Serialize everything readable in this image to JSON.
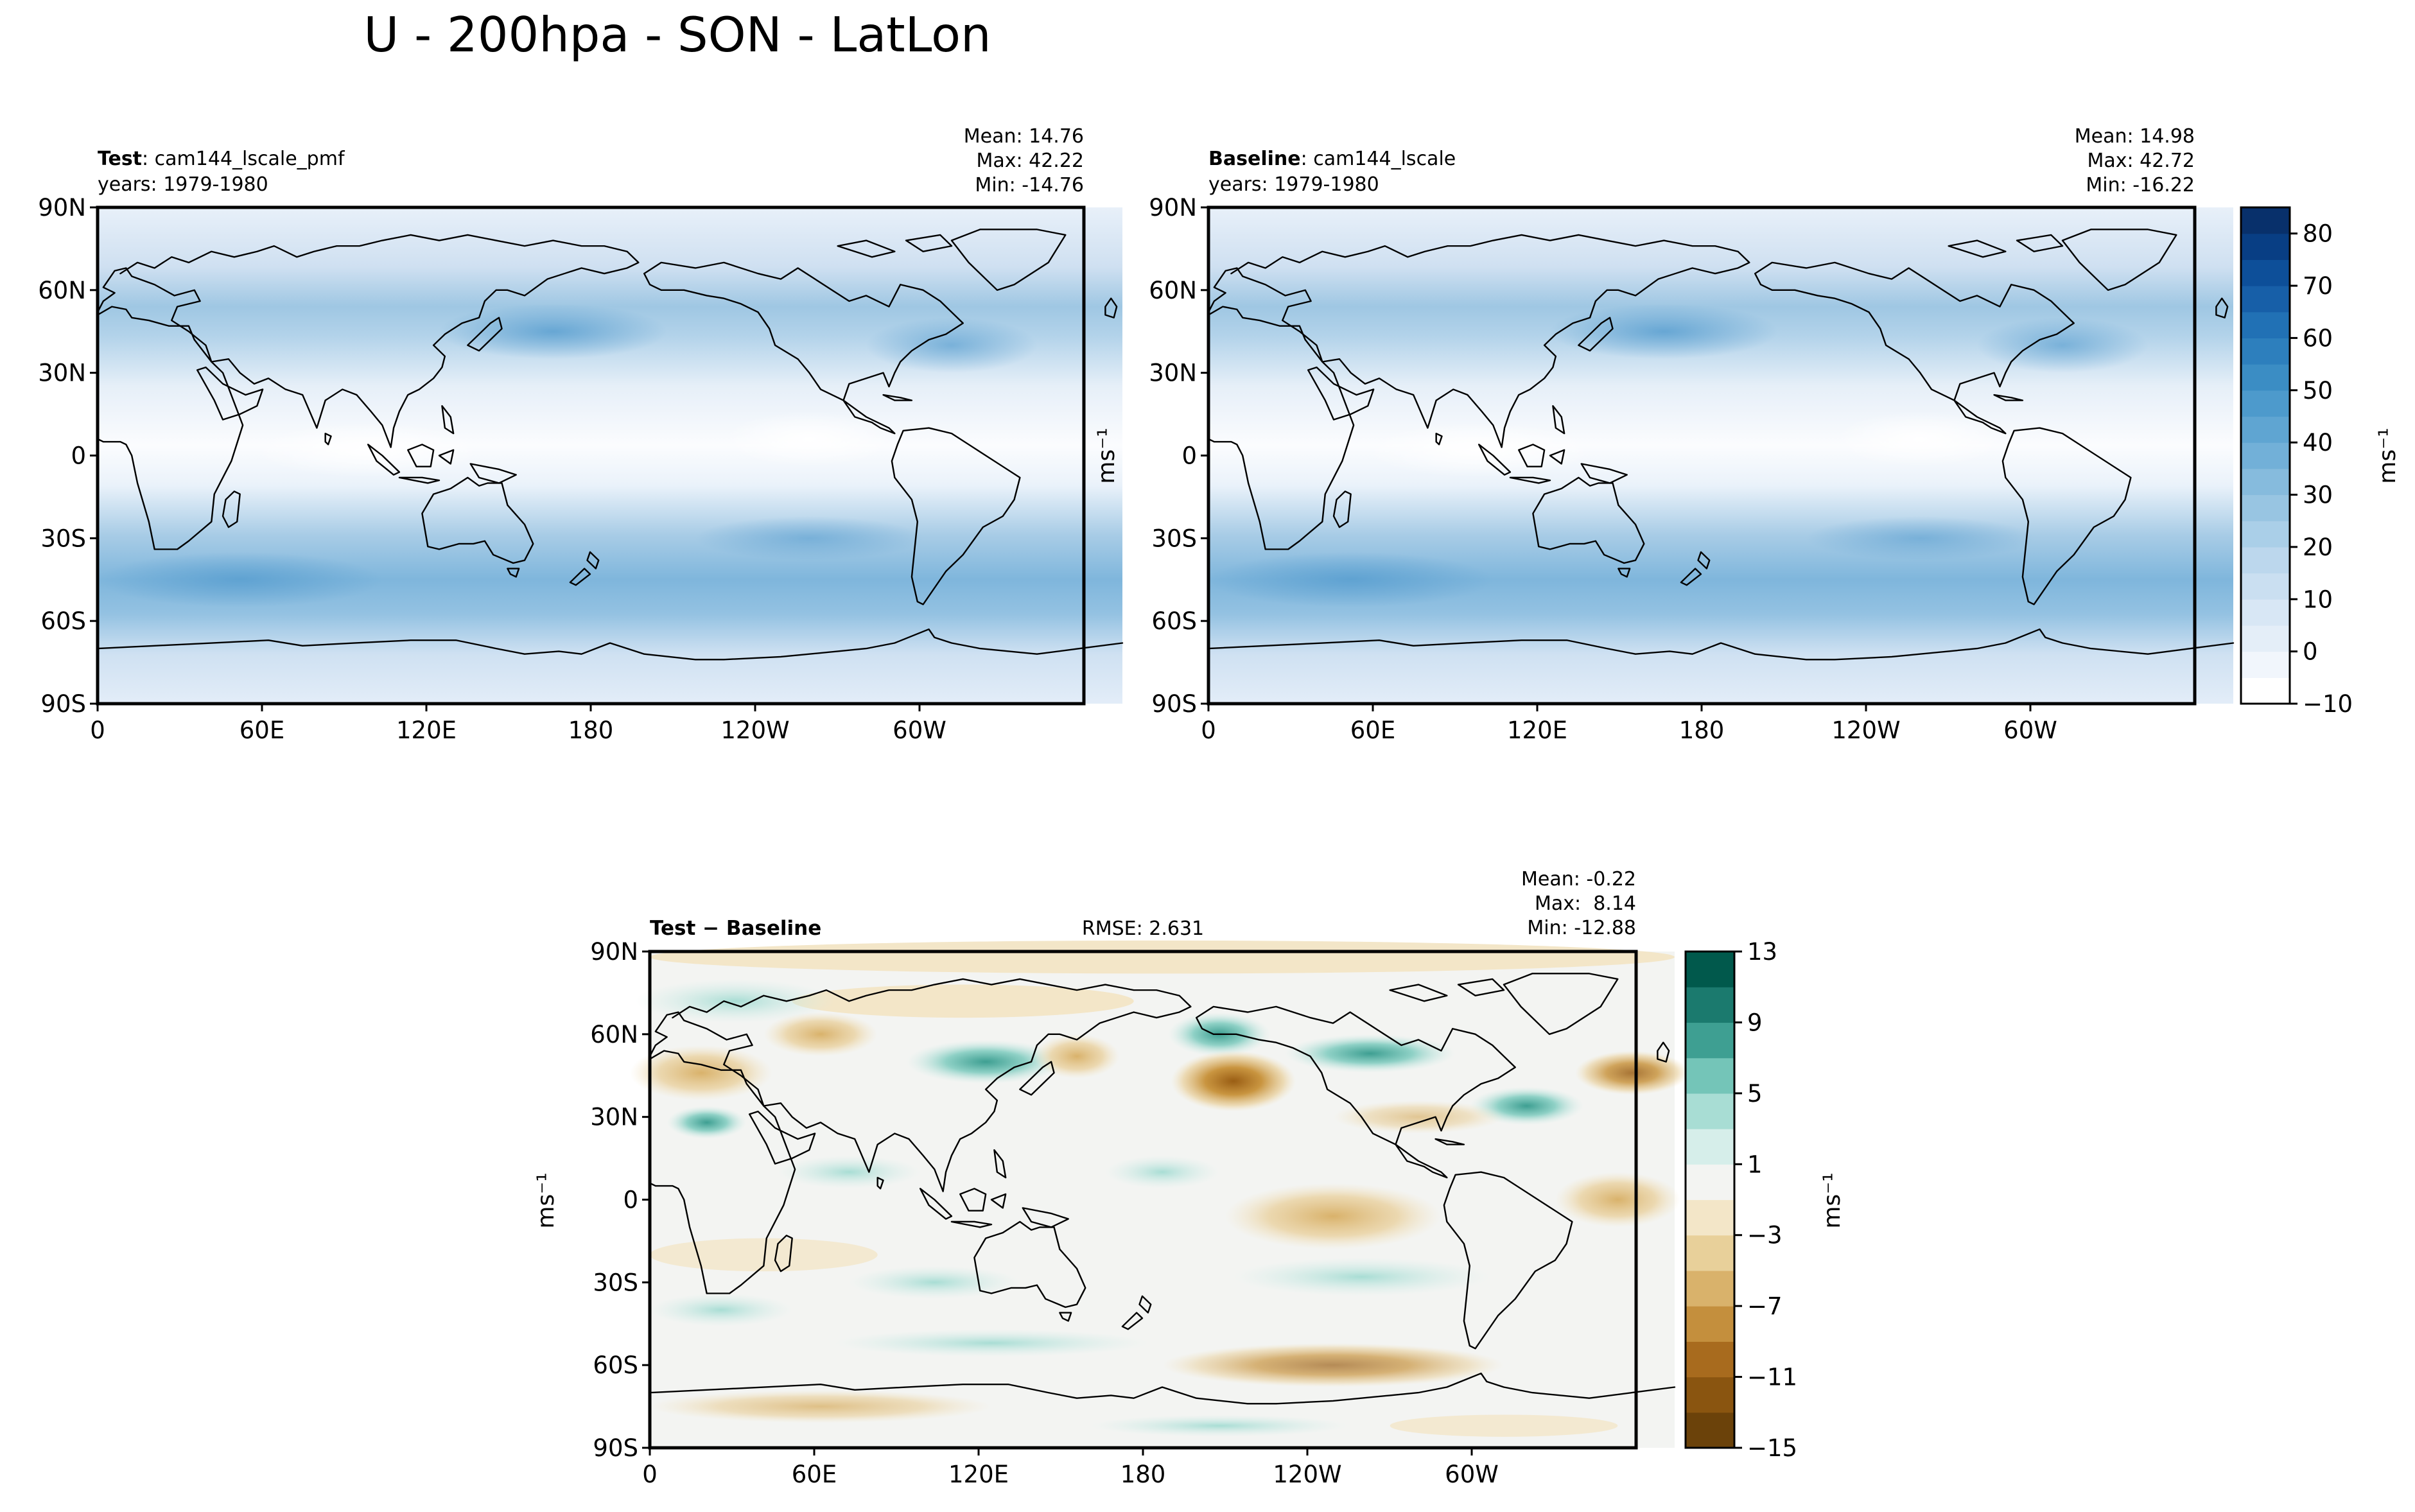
{
  "figure": {
    "title": "U - 200hpa - SON - LatLon"
  },
  "panels": {
    "test": {
      "label_bold": "Test",
      "label_rest": ": cam144_lscale_pmf",
      "years": "years: 1979-1980",
      "mean": "Mean: 14.76",
      "max": "Max: 42.22",
      "min": "Min: -14.76"
    },
    "baseline": {
      "label_bold": "Baseline",
      "label_rest": ": cam144_lscale",
      "years": "years: 1979-1980",
      "mean": "Mean: 14.98",
      "max": "Max: 42.72",
      "min": "Min: -16.22"
    },
    "diff": {
      "label": "Test − Baseline",
      "rmse": "RMSE: 2.631",
      "mean": "Mean: -0.22",
      "max": "Max:  8.14",
      "min": "Min: -12.88"
    }
  },
  "axes": {
    "lat_ticks": [
      "90N",
      "60N",
      "30N",
      "0",
      "30S",
      "60S",
      "90S"
    ],
    "lon_ticks": [
      "0",
      "60E",
      "120E",
      "180",
      "120W",
      "60W"
    ]
  },
  "colorbars": {
    "main": {
      "unit": "ms⁻¹",
      "ticks": [
        "80",
        "70",
        "60",
        "50",
        "40",
        "30",
        "20",
        "10",
        "0",
        "−10"
      ],
      "range": [
        -10,
        85
      ],
      "colors": [
        "#ffffff",
        "#f1f6fc",
        "#e4eef8",
        "#d8e7f5",
        "#cadff1",
        "#bcd7ed",
        "#aacfe8",
        "#98c5e2",
        "#86bbdd",
        "#72b0d8",
        "#5fa5d2",
        "#4d9acc",
        "#3b8dc4",
        "#2d7fbd",
        "#2171b5",
        "#175fa8",
        "#0d4f99",
        "#083e84",
        "#08306b"
      ]
    },
    "diff": {
      "unit": "ms⁻¹",
      "ticks": [
        "13",
        "9",
        "5",
        "1",
        "−3",
        "−7",
        "−11",
        "−15"
      ],
      "range": [
        -15,
        13
      ],
      "colors": [
        "#6b420a",
        "#8a5510",
        "#a86b1e",
        "#c48f3d",
        "#d9b26b",
        "#e8d09a",
        "#f3e6c8",
        "#f3f4f2",
        "#d6eeea",
        "#a8ddd4",
        "#74c5b8",
        "#3e9f92",
        "#1b7a6e",
        "#01594c"
      ]
    }
  },
  "colors": {
    "land_outline": "#000000",
    "frame": "#000000"
  }
}
